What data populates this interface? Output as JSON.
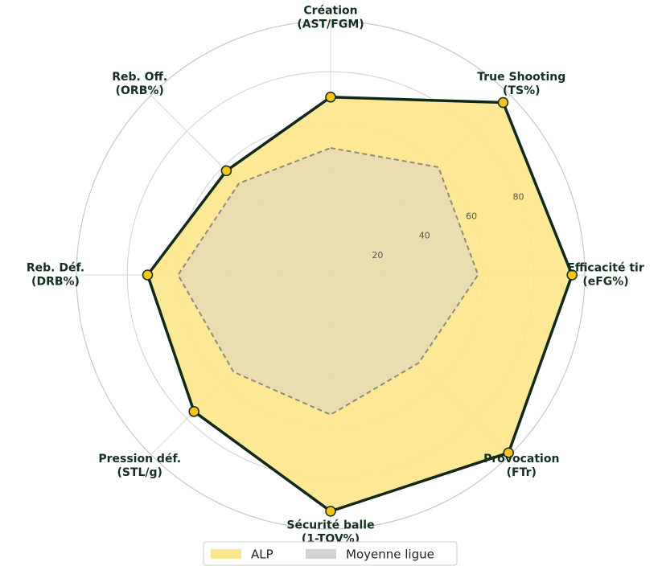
{
  "chart_data": {
    "type": "radar",
    "categories": [
      [
        "Création",
        "(AST/FGM)"
      ],
      [
        "True Shooting",
        "(TS%)"
      ],
      [
        "Efficacité tir",
        "(eFG%)"
      ],
      [
        "Provocation",
        "(FTr)"
      ],
      [
        "Sécurité balle",
        "(1-TOV%)"
      ],
      [
        "Pression déf.",
        "(STL/g)"
      ],
      [
        "Reb. Déf.",
        "(DRB%)"
      ],
      [
        "Reb. Off.",
        "(ORB%)"
      ]
    ],
    "series": [
      {
        "name": "ALP",
        "color": "#fde68a",
        "line_color": "#10291a",
        "marker_color": "#f5c518",
        "values": [
          70,
          96,
          95,
          99,
          93,
          76,
          72,
          58
        ]
      },
      {
        "name": "Moyenne ligue",
        "color": "#d3d3d3",
        "line_color": "#8a8a80",
        "values": [
          50,
          60,
          58,
          49,
          55,
          54,
          60,
          51
        ]
      }
    ],
    "ylim": [
      0,
      100
    ],
    "yticks": [
      20,
      40,
      60,
      80
    ],
    "grid": true,
    "legend": "lower center"
  }
}
